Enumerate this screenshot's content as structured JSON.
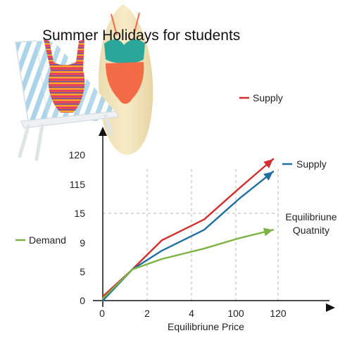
{
  "chart_data": {
    "type": "line",
    "title": "Summer Holidays for students",
    "xlabel": "Equilibriune Price",
    "ylabel": "",
    "x_ticks": [
      "0",
      "2",
      "4",
      "100",
      "120"
    ],
    "y_ticks": [
      "0",
      "5",
      "9",
      "15",
      "115",
      "120"
    ],
    "x": [
      0,
      1,
      2,
      3,
      4,
      5
    ],
    "series": [
      {
        "name": "Supply",
        "color": "#d32f2f",
        "values": [
          0.2,
          1.5,
          2.9,
          3.9,
          5.4,
          6.8
        ]
      },
      {
        "name": "Supply",
        "color": "#1f6fa3",
        "values": [
          0,
          1.5,
          2.4,
          3.4,
          4.9,
          6.2
        ]
      },
      {
        "name": "Demand",
        "color": "#7cb342",
        "values": [
          0.1,
          1.5,
          2.0,
          2.5,
          3.0,
          3.4
        ]
      }
    ],
    "reference": {
      "y_label": "15",
      "label": "Equilibriune Quatnity"
    },
    "grid": "dashed vertical lines at x ticks"
  }
}
